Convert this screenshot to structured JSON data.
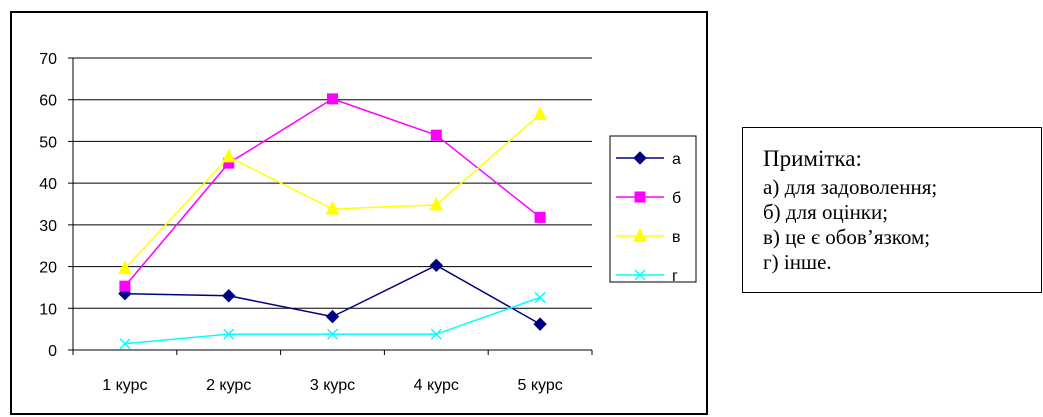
{
  "chart_data": {
    "type": "line",
    "categories": [
      "1 курс",
      "2 курс",
      "3 курс",
      "4 курс",
      "5 курс"
    ],
    "ylim": [
      0,
      70
    ],
    "yticks": [
      "0",
      "10",
      "20",
      "30",
      "40",
      "50",
      "60",
      "70"
    ],
    "grid": true,
    "legend_position": "right",
    "series": [
      {
        "name": "а",
        "values": [
          13.5,
          13,
          8,
          20.3,
          6.2
        ],
        "color": "#000080",
        "marker": "diamond"
      },
      {
        "name": "б",
        "values": [
          15.3,
          44.8,
          60.2,
          51.5,
          31.8
        ],
        "color": "#ff00ff",
        "marker": "square"
      },
      {
        "name": "в",
        "values": [
          19.5,
          46.3,
          33.8,
          34.8,
          56.5
        ],
        "color": "#ffff00",
        "marker": "triangle"
      },
      {
        "name": "г",
        "values": [
          1.5,
          3.8,
          3.8,
          3.8,
          12.6
        ],
        "color": "#00ffff",
        "marker": "x"
      }
    ]
  },
  "note": {
    "title": "Примітка:",
    "lines": [
      "а) для задоволення;",
      "б) для оцінки;",
      "в) це є обов’язком;",
      "г) інше."
    ]
  }
}
